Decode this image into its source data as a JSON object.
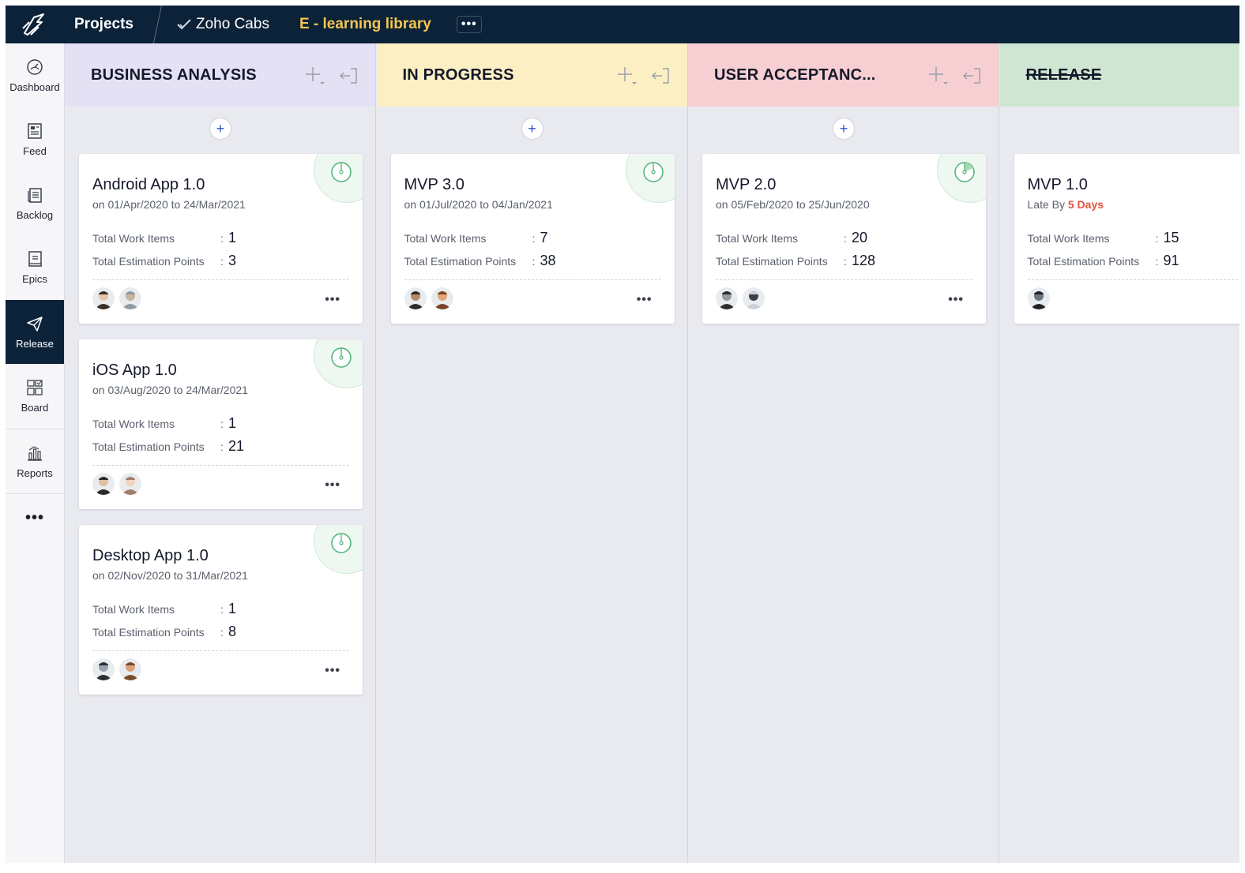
{
  "topbar": {
    "logo_icon": "zoho-sprints-logo-icon",
    "projects_label": "Projects",
    "project_name": "Zoho Cabs",
    "library_name": "E - learning library",
    "more_label": "•••"
  },
  "sidebar": {
    "items": [
      {
        "label": "Dashboard",
        "icon": "dashboard-icon"
      },
      {
        "label": "Feed",
        "icon": "feed-icon"
      },
      {
        "label": "Backlog",
        "icon": "backlog-icon"
      },
      {
        "label": "Epics",
        "icon": "epics-icon"
      },
      {
        "label": "Release",
        "icon": "release-icon",
        "active": true
      },
      {
        "label": "Board",
        "icon": "board-icon"
      },
      {
        "label": "Reports",
        "icon": "reports-icon"
      }
    ],
    "more_label": "•••"
  },
  "labels": {
    "total_work_items": "Total Work Items",
    "total_estimation_points": "Total Estimation Points",
    "colon": ":",
    "more": "•••",
    "add": "+"
  },
  "columns": [
    {
      "title": "BUSINESS ANALYSIS",
      "color": "#e5e1f5",
      "cards": [
        {
          "title": "Android App 1.0",
          "subtitle": "on 01/Apr/2020 to 24/Mar/2021",
          "work_items": "1",
          "estimation_points": "3"
        },
        {
          "title": "iOS App 1.0",
          "subtitle": "on 03/Aug/2020 to 24/Mar/2021",
          "work_items": "1",
          "estimation_points": "21"
        },
        {
          "title": "Desktop App 1.0",
          "subtitle": "on 02/Nov/2020 to 31/Mar/2021",
          "work_items": "1",
          "estimation_points": "8"
        }
      ]
    },
    {
      "title": "IN PROGRESS",
      "color": "#fcefc4",
      "cards": [
        {
          "title": "MVP 3.0",
          "subtitle": "on 01/Jul/2020 to 04/Jan/2021",
          "work_items": "7",
          "estimation_points": "38"
        }
      ]
    },
    {
      "title": "USER ACCEPTANC...",
      "color": "#f7cfd3",
      "cards": [
        {
          "title": "MVP 2.0",
          "subtitle": "on 05/Feb/2020 to 25/Jun/2020",
          "work_items": "20",
          "estimation_points": "128"
        }
      ]
    },
    {
      "title": "RELEASE",
      "color": "#cfe6d3",
      "cards": [
        {
          "title": "MVP 1.0",
          "subtitle_prefix": "Late By ",
          "subtitle_late": "5 Days",
          "work_items": "15",
          "estimation_points": "91"
        }
      ]
    }
  ]
}
